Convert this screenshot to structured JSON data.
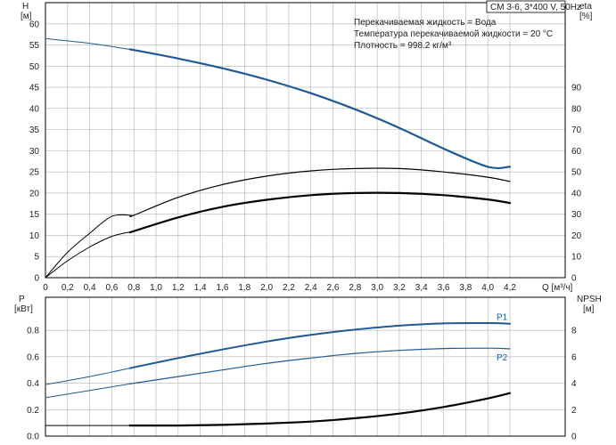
{
  "header": {
    "model": "CM 3-6, 3*400 V, 50Hz",
    "notes": [
      "Перекачиваемая жидкость = Вода",
      "Температура перекачиваемой жидкости = 20 °C",
      "Плотность = 998.2 кг/м³"
    ]
  },
  "colors": {
    "blue": "#1f5a96",
    "black": "#000000",
    "grid": "#b0b0b0"
  },
  "chart_data": [
    {
      "type": "line",
      "name": "head-efficiency",
      "x_label": "Q [м³/ч]",
      "x_ticks": [
        "0",
        "0,2",
        "0,4",
        "0,6",
        "0,8",
        "1,0",
        "1,2",
        "1,4",
        "1,6",
        "1,8",
        "2,0",
        "2,2",
        "2,4",
        "2,6",
        "2,8",
        "3,0",
        "3,2",
        "3,4",
        "3,6",
        "3,8",
        "4,0",
        "4,2"
      ],
      "xlim": [
        0,
        4.7
      ],
      "left_axis": {
        "label": "H",
        "unit": "[м]",
        "ylim": [
          0,
          65
        ],
        "ticks": [
          "0",
          "5",
          "10",
          "15",
          "20",
          "25",
          "30",
          "35",
          "40",
          "45",
          "50",
          "55",
          "60"
        ]
      },
      "right_axis": {
        "label": "eta",
        "unit": "[%]",
        "ylim": [
          0,
          130
        ],
        "ticks": [
          "0",
          "10",
          "20",
          "30",
          "40",
          "50",
          "60",
          "70",
          "80",
          "90"
        ]
      },
      "grid": true,
      "series": [
        {
          "axis": "left",
          "color": "#1f5a96",
          "width": 2.2,
          "dim_below": 0.78,
          "x": [
            0,
            0.4,
            0.8,
            1.2,
            1.6,
            2.0,
            2.4,
            2.8,
            3.2,
            3.6,
            4.0,
            4.2
          ],
          "y": [
            56.5,
            55.4,
            53.8,
            51.8,
            49.5,
            46.8,
            43.6,
            39.8,
            35.4,
            30.5,
            26.2,
            26.2
          ]
        },
        {
          "axis": "right",
          "color": "#000000",
          "width": 1.2,
          "dim_below": 0.78,
          "x": [
            0,
            0.2,
            0.4,
            0.6,
            0.8,
            1.2,
            1.6,
            2.0,
            2.4,
            2.8,
            3.2,
            3.6,
            4.0,
            4.2
          ],
          "y": [
            0,
            12,
            21,
            29,
            29.5,
            38,
            44,
            48,
            50.5,
            51.6,
            51.6,
            50,
            47.5,
            45.5
          ]
        },
        {
          "axis": "right",
          "color": "#000000",
          "width": 2.2,
          "dim_below": 0.78,
          "x": [
            0,
            0.2,
            0.4,
            0.6,
            0.8,
            1.2,
            1.6,
            2.0,
            2.4,
            2.8,
            3.2,
            3.6,
            4.0,
            4.2
          ],
          "y": [
            0,
            8,
            14.5,
            19.5,
            22,
            28.5,
            33.5,
            36.8,
            39,
            40,
            40,
            39,
            37,
            35.3
          ]
        }
      ]
    },
    {
      "type": "line",
      "name": "power-npsh",
      "xlim": [
        0,
        4.7
      ],
      "left_axis": {
        "label": "P",
        "unit": "[кВт]",
        "ylim": [
          0,
          1.05
        ],
        "ticks": [
          "0.0",
          "0.2",
          "0.4",
          "0.6",
          "0.8"
        ]
      },
      "right_axis": {
        "label": "NPSH",
        "unit": "[м]",
        "ylim": [
          0,
          10.5
        ],
        "ticks": [
          "0",
          "2",
          "4",
          "6",
          "8"
        ]
      },
      "grid": true,
      "series": [
        {
          "name": "P1",
          "axis": "left",
          "color": "#1f5a96",
          "width": 2.0,
          "dim_below": 0.78,
          "x": [
            0,
            0.4,
            0.8,
            1.2,
            1.6,
            2.0,
            2.4,
            2.8,
            3.2,
            3.6,
            4.0,
            4.2
          ],
          "y": [
            0.39,
            0.45,
            0.52,
            0.59,
            0.655,
            0.715,
            0.765,
            0.805,
            0.835,
            0.852,
            0.855,
            0.85
          ]
        },
        {
          "name": "P2",
          "axis": "left",
          "color": "#1f5a96",
          "width": 1.2,
          "dim_below": 0.78,
          "x": [
            0,
            0.4,
            0.8,
            1.2,
            1.6,
            2.0,
            2.4,
            2.8,
            3.2,
            3.6,
            4.0,
            4.2
          ],
          "y": [
            0.29,
            0.345,
            0.4,
            0.45,
            0.5,
            0.55,
            0.59,
            0.625,
            0.648,
            0.662,
            0.665,
            0.66
          ]
        },
        {
          "axis": "right",
          "color": "#000000",
          "width": 2.2,
          "dim_below": 0.78,
          "x": [
            0,
            0.4,
            0.8,
            1.2,
            1.6,
            2.0,
            2.4,
            2.8,
            3.2,
            3.6,
            4.0,
            4.2
          ],
          "y": [
            0.8,
            0.8,
            0.8,
            0.8,
            0.85,
            0.95,
            1.1,
            1.35,
            1.7,
            2.2,
            2.85,
            3.25
          ]
        }
      ]
    }
  ]
}
